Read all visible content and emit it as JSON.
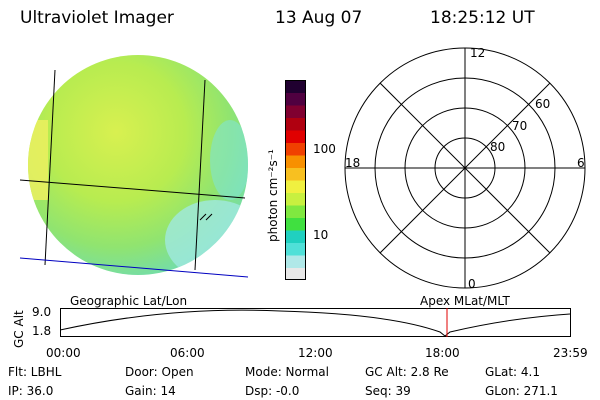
{
  "header": {
    "title": "Ultraviolet Imager",
    "date": "13 Aug 07",
    "time": "18:25:12 UT"
  },
  "colorbar": {
    "label": "photon cm⁻²s⁻¹",
    "tick_100": "100",
    "tick_10": "10",
    "colors": [
      "#e8e8e8",
      "#b0e8e8",
      "#50e0d8",
      "#20d0c0",
      "#40e040",
      "#80e840",
      "#c8f040",
      "#f0f040",
      "#f8c020",
      "#f89000",
      "#f04000",
      "#e00000",
      "#b00010",
      "#800030",
      "#500040",
      "#200030"
    ]
  },
  "polar_plot": {
    "label_12": "12",
    "label_18": "18",
    "label_6": "6",
    "label_0": "0",
    "lat_60": "60",
    "lat_70": "70",
    "lat_80": "80"
  },
  "footer_labels": {
    "left": "Geographic Lat/Lon",
    "right": "Apex MLat/MLT"
  },
  "altitude_chart": {
    "ylabel": "GC Alt",
    "y_max_label": "9.0",
    "y_min_label": "1.8",
    "x_ticks": [
      "00:00",
      "06:00",
      "12:00",
      "18:00",
      "23:59"
    ]
  },
  "info": {
    "flt": "Flt: LBHL",
    "ip": "IP: 36.0",
    "door": "Door: Open",
    "gain": "Gain: 14",
    "mode": "Mode: Normal",
    "dsp": "Dsp:   -0.0",
    "gcalt": "GC Alt: 2.8 Re",
    "seq": "Seq: 39",
    "glat": "GLat:    4.1",
    "glon": "GLon: 271.1"
  }
}
